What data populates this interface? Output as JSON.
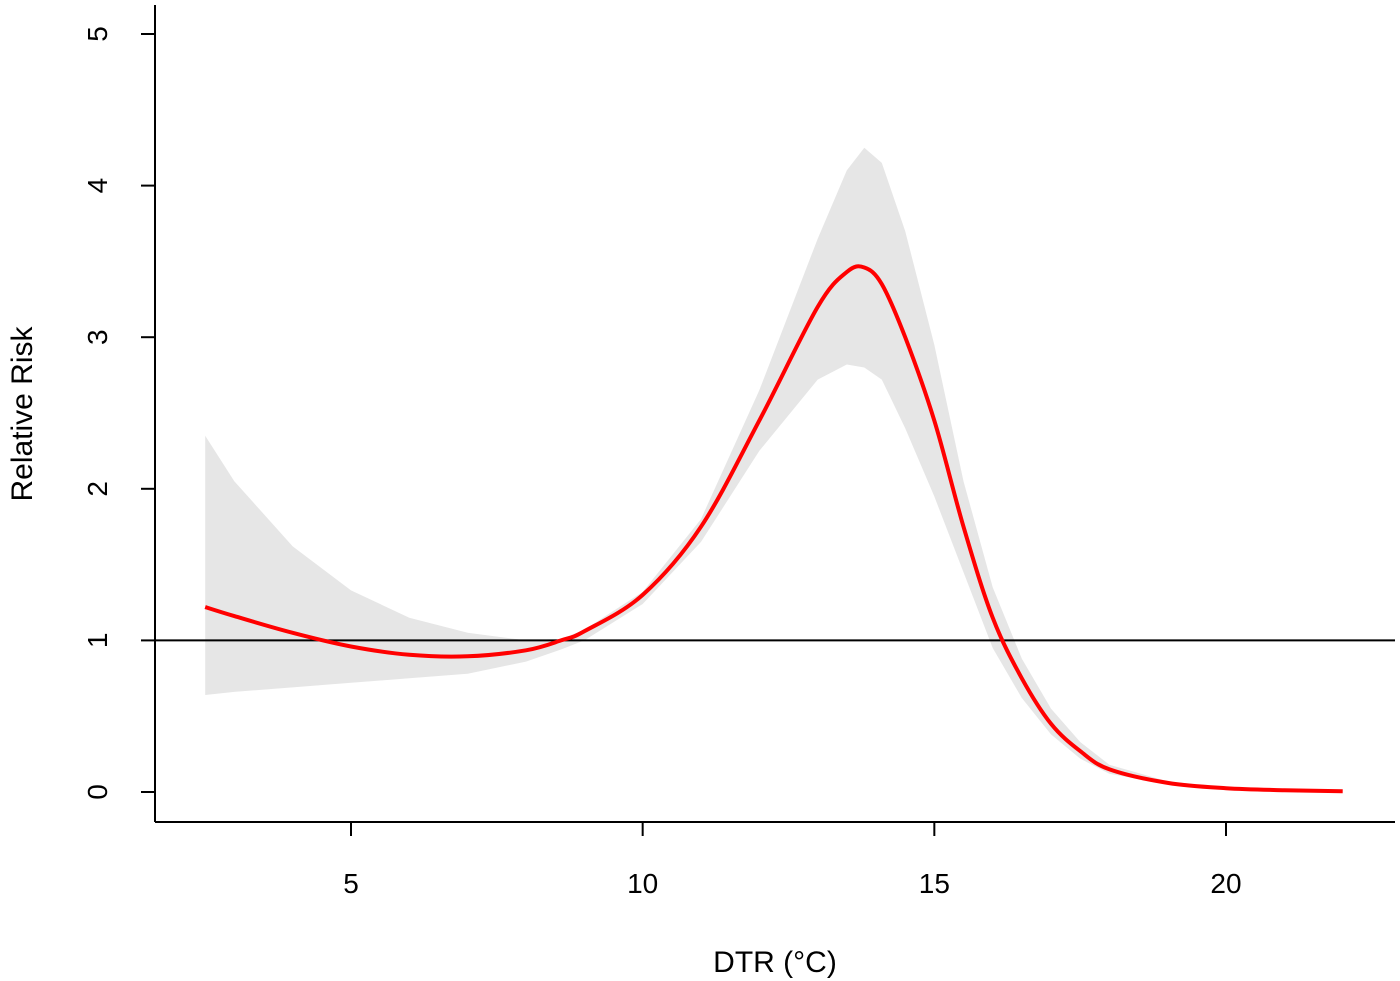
{
  "chart_data": {
    "type": "line",
    "xlabel": "DTR (°C)",
    "ylabel": "Relative Risk",
    "xlim": [
      1.75,
      23.0
    ],
    "ylim": [
      -0.2,
      5.2
    ],
    "x_ticks": [
      5,
      10,
      15,
      20
    ],
    "y_ticks": [
      0,
      1,
      2,
      3,
      4,
      5
    ],
    "reference_line": {
      "y": 1,
      "color": "#000000"
    },
    "grid": false,
    "legend": "none",
    "series": [
      {
        "color": "#ff0000",
        "x": [
          2.5,
          3.0,
          4.0,
          5.0,
          6.0,
          7.0,
          8.0,
          8.6,
          9.0,
          10.0,
          11.0,
          12.0,
          13.0,
          13.5,
          13.8,
          14.1,
          14.5,
          15.0,
          15.5,
          16.0,
          16.5,
          17.0,
          17.5,
          18.0,
          19.0,
          20.0,
          21.0,
          22.0
        ],
        "y": [
          1.22,
          1.16,
          1.05,
          0.96,
          0.905,
          0.895,
          0.935,
          1.0,
          1.06,
          1.3,
          1.75,
          2.45,
          3.2,
          3.43,
          3.46,
          3.35,
          3.0,
          2.45,
          1.75,
          1.15,
          0.75,
          0.45,
          0.27,
          0.15,
          0.06,
          0.025,
          0.012,
          0.005
        ],
        "upper": [
          2.35,
          2.05,
          1.62,
          1.33,
          1.15,
          1.05,
          1.0,
          1.01,
          1.07,
          1.32,
          1.8,
          2.65,
          3.65,
          4.1,
          4.25,
          4.15,
          3.7,
          2.95,
          2.05,
          1.35,
          0.88,
          0.55,
          0.33,
          0.18,
          0.07,
          0.03,
          0.014,
          0.006
        ],
        "lower": [
          0.64,
          0.66,
          0.69,
          0.72,
          0.75,
          0.78,
          0.86,
          0.94,
          1.0,
          1.24,
          1.65,
          2.25,
          2.72,
          2.82,
          2.8,
          2.72,
          2.4,
          1.95,
          1.45,
          0.95,
          0.62,
          0.38,
          0.22,
          0.12,
          0.05,
          0.02,
          0.01,
          0.004
        ],
        "band_color": "#e6e6e6"
      }
    ]
  }
}
